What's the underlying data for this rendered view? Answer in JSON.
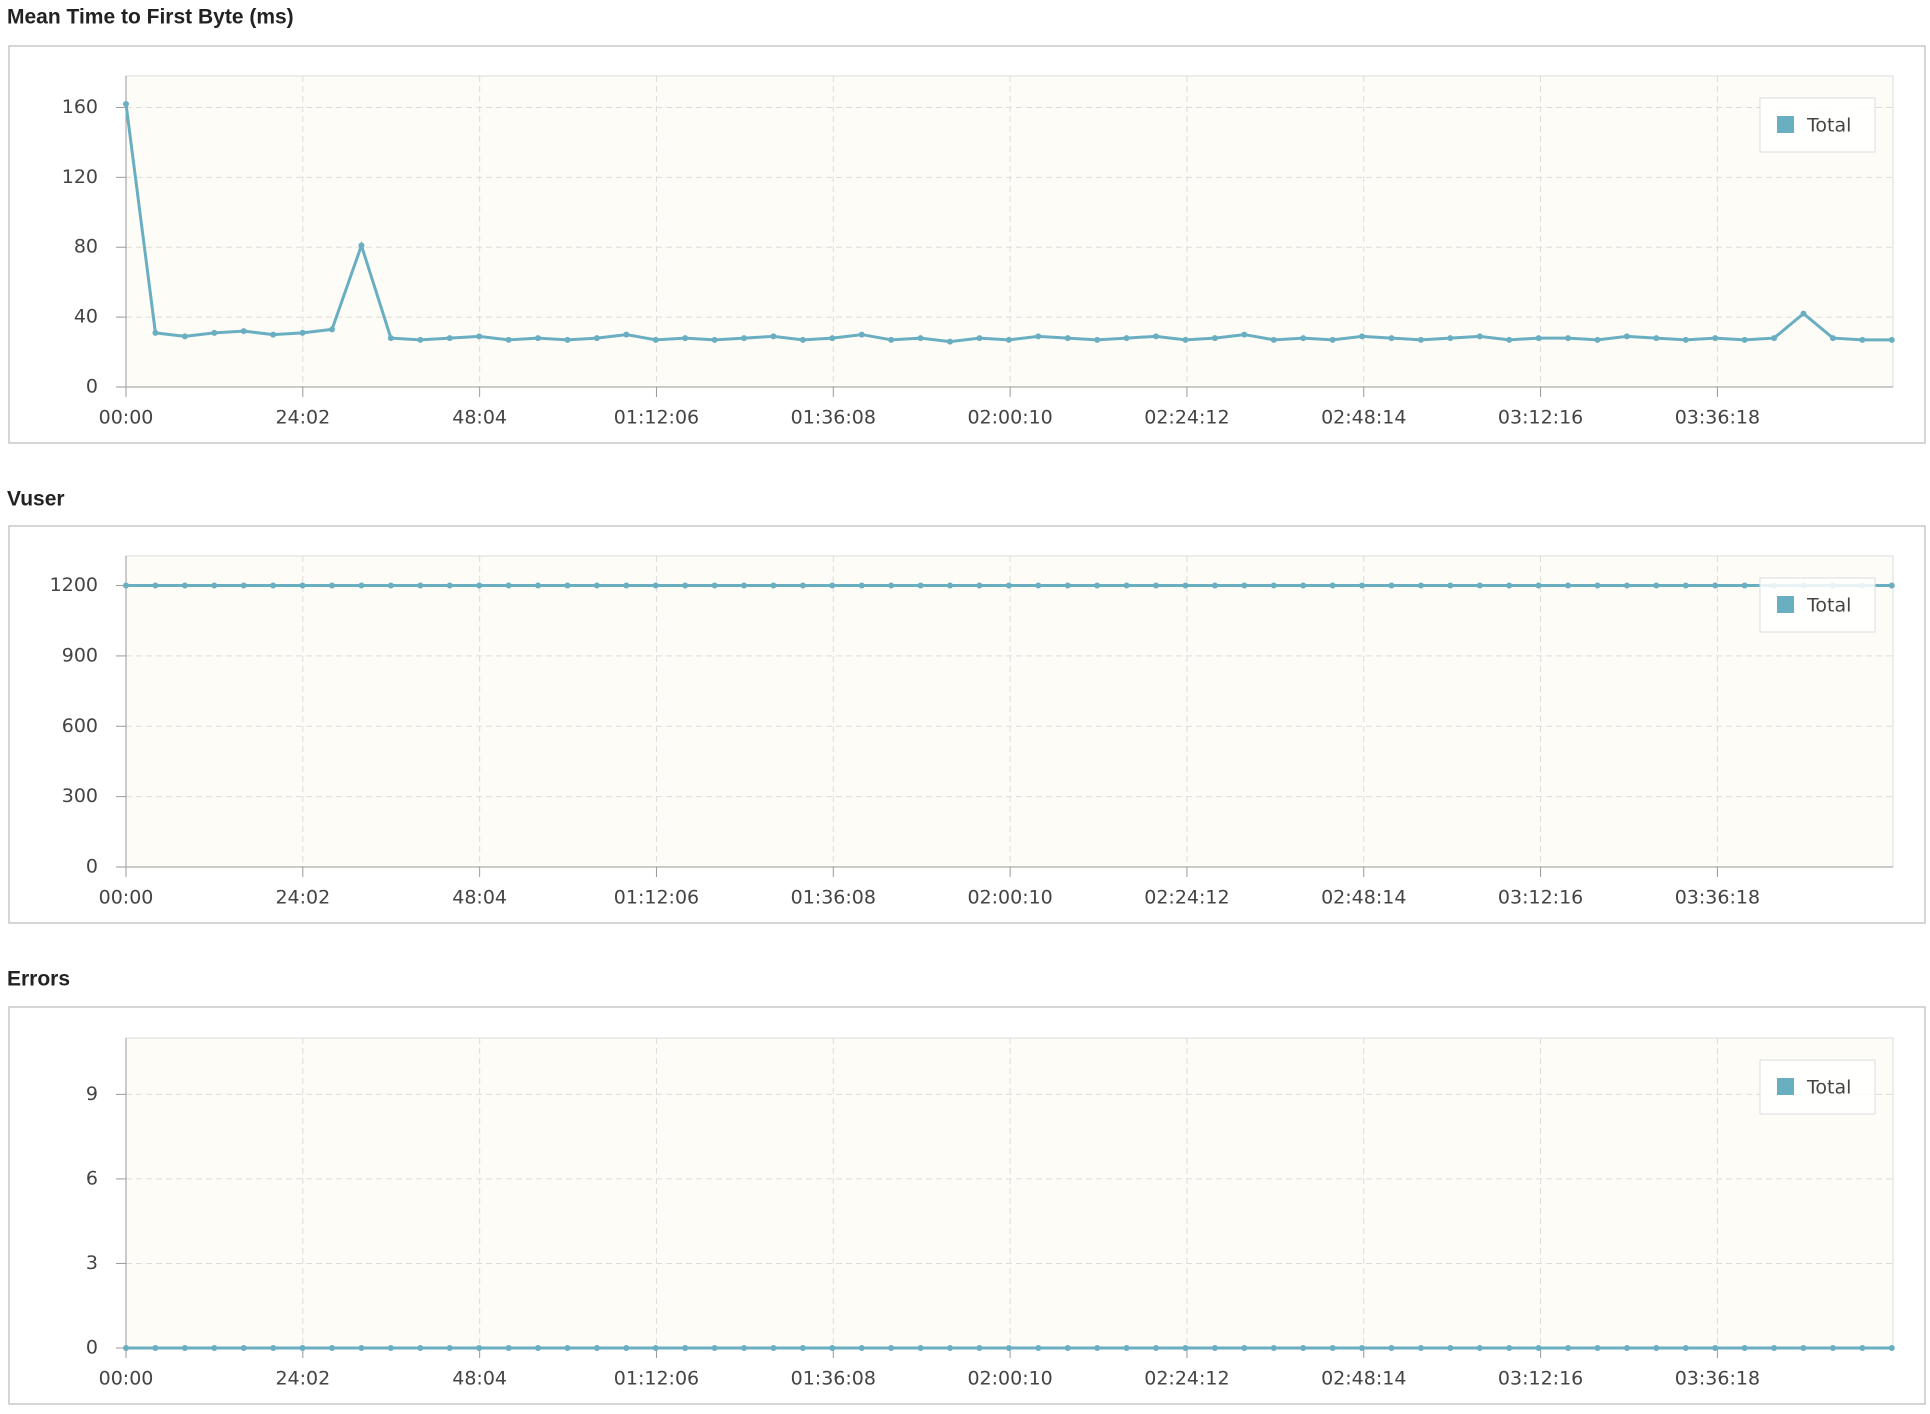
{
  "chart_data": [
    {
      "type": "line",
      "title": "Mean Time to First Byte (ms)",
      "x": [
        0,
        240,
        480,
        720,
        960,
        1200,
        1440,
        1680,
        1920,
        2160,
        2400,
        2640,
        2880,
        3120,
        3360,
        3600,
        3840,
        4080,
        4320,
        4560,
        4800,
        5040,
        5280,
        5520,
        5760,
        6000,
        6240,
        6480,
        6720,
        6960,
        7200,
        7440,
        7680,
        7920,
        8160,
        8400,
        8640,
        8880,
        9120,
        9360,
        9600,
        9840,
        10080,
        10320,
        10560,
        10800,
        11040,
        11280,
        11520,
        11760,
        12000,
        12240,
        12480,
        12720,
        12960,
        13200,
        13440,
        13680,
        13920,
        14160,
        14400
      ],
      "series": [
        {
          "name": "Total",
          "color": "#6aaec2",
          "values": [
            162,
            31,
            29,
            31,
            32,
            30,
            31,
            33,
            81,
            28,
            27,
            28,
            29,
            27,
            28,
            27,
            28,
            30,
            27,
            28,
            27,
            28,
            29,
            27,
            28,
            30,
            27,
            28,
            26,
            28,
            27,
            29,
            28,
            27,
            28,
            29,
            27,
            28,
            30,
            27,
            28,
            27,
            29,
            28,
            27,
            28,
            29,
            27,
            28,
            28,
            27,
            29,
            28,
            27,
            28,
            27,
            28,
            42,
            28,
            27,
            27
          ]
        }
      ],
      "xlim": [
        0,
        14410
      ],
      "xticks": [
        {
          "value": 0,
          "label": "00:00"
        },
        {
          "value": 1442,
          "label": "24:02"
        },
        {
          "value": 2884,
          "label": "48:04"
        },
        {
          "value": 4326,
          "label": "01:12:06"
        },
        {
          "value": 5768,
          "label": "01:36:08"
        },
        {
          "value": 7210,
          "label": "02:00:10"
        },
        {
          "value": 8652,
          "label": "02:24:12"
        },
        {
          "value": 10094,
          "label": "02:48:14"
        },
        {
          "value": 11536,
          "label": "03:12:16"
        },
        {
          "value": 12978,
          "label": "03:36:18"
        }
      ],
      "ylim": [
        0,
        178
      ],
      "yticks": [
        0,
        40,
        80,
        120,
        160
      ],
      "grid": true,
      "legend": "upper right"
    },
    {
      "type": "line",
      "title": "Vuser",
      "x": [
        0,
        240,
        480,
        720,
        960,
        1200,
        1440,
        1680,
        1920,
        2160,
        2400,
        2640,
        2880,
        3120,
        3360,
        3600,
        3840,
        4080,
        4320,
        4560,
        4800,
        5040,
        5280,
        5520,
        5760,
        6000,
        6240,
        6480,
        6720,
        6960,
        7200,
        7440,
        7680,
        7920,
        8160,
        8400,
        8640,
        8880,
        9120,
        9360,
        9600,
        9840,
        10080,
        10320,
        10560,
        10800,
        11040,
        11280,
        11520,
        11760,
        12000,
        12240,
        12480,
        12720,
        12960,
        13200,
        13440,
        13680,
        13920,
        14160,
        14400
      ],
      "series": [
        {
          "name": "Total",
          "color": "#6aaec2",
          "values": [
            1200,
            1200,
            1200,
            1200,
            1200,
            1200,
            1200,
            1200,
            1200,
            1200,
            1200,
            1200,
            1200,
            1200,
            1200,
            1200,
            1200,
            1200,
            1200,
            1200,
            1200,
            1200,
            1200,
            1200,
            1200,
            1200,
            1200,
            1200,
            1200,
            1200,
            1200,
            1200,
            1200,
            1200,
            1200,
            1200,
            1200,
            1200,
            1200,
            1200,
            1200,
            1200,
            1200,
            1200,
            1200,
            1200,
            1200,
            1200,
            1200,
            1200,
            1200,
            1200,
            1200,
            1200,
            1200,
            1200,
            1200,
            1200,
            1200,
            1200,
            1200
          ]
        }
      ],
      "xlim": [
        0,
        14410
      ],
      "xticks": [
        {
          "value": 0,
          "label": "00:00"
        },
        {
          "value": 1442,
          "label": "24:02"
        },
        {
          "value": 2884,
          "label": "48:04"
        },
        {
          "value": 4326,
          "label": "01:12:06"
        },
        {
          "value": 5768,
          "label": "01:36:08"
        },
        {
          "value": 7210,
          "label": "02:00:10"
        },
        {
          "value": 8652,
          "label": "02:24:12"
        },
        {
          "value": 10094,
          "label": "02:48:14"
        },
        {
          "value": 11536,
          "label": "03:12:16"
        },
        {
          "value": 12978,
          "label": "03:36:18"
        }
      ],
      "ylim": [
        0,
        1326
      ],
      "yticks": [
        0,
        300,
        600,
        900,
        1200
      ],
      "grid": true,
      "legend": "upper right"
    },
    {
      "type": "line",
      "title": "Errors",
      "x": [
        0,
        240,
        480,
        720,
        960,
        1200,
        1440,
        1680,
        1920,
        2160,
        2400,
        2640,
        2880,
        3120,
        3360,
        3600,
        3840,
        4080,
        4320,
        4560,
        4800,
        5040,
        5280,
        5520,
        5760,
        6000,
        6240,
        6480,
        6720,
        6960,
        7200,
        7440,
        7680,
        7920,
        8160,
        8400,
        8640,
        8880,
        9120,
        9360,
        9600,
        9840,
        10080,
        10320,
        10560,
        10800,
        11040,
        11280,
        11520,
        11760,
        12000,
        12240,
        12480,
        12720,
        12960,
        13200,
        13440,
        13680,
        13920,
        14160,
        14400
      ],
      "series": [
        {
          "name": "Total",
          "color": "#6aaec2",
          "values": [
            0,
            0,
            0,
            0,
            0,
            0,
            0,
            0,
            0,
            0,
            0,
            0,
            0,
            0,
            0,
            0,
            0,
            0,
            0,
            0,
            0,
            0,
            0,
            0,
            0,
            0,
            0,
            0,
            0,
            0,
            0,
            0,
            0,
            0,
            0,
            0,
            0,
            0,
            0,
            0,
            0,
            0,
            0,
            0,
            0,
            0,
            0,
            0,
            0,
            0,
            0,
            0,
            0,
            0,
            0,
            0,
            0,
            0,
            0,
            0,
            0
          ]
        }
      ],
      "xlim": [
        0,
        14410
      ],
      "xticks": [
        {
          "value": 0,
          "label": "00:00"
        },
        {
          "value": 1442,
          "label": "24:02"
        },
        {
          "value": 2884,
          "label": "48:04"
        },
        {
          "value": 4326,
          "label": "01:12:06"
        },
        {
          "value": 5768,
          "label": "01:36:08"
        },
        {
          "value": 7210,
          "label": "02:00:10"
        },
        {
          "value": 8652,
          "label": "02:24:12"
        },
        {
          "value": 10094,
          "label": "02:48:14"
        },
        {
          "value": 11536,
          "label": "03:12:16"
        },
        {
          "value": 12978,
          "label": "03:36:18"
        }
      ],
      "ylim": [
        0,
        11
      ],
      "yticks": [
        0,
        3,
        6,
        9
      ],
      "grid": true,
      "legend": "upper right"
    }
  ]
}
